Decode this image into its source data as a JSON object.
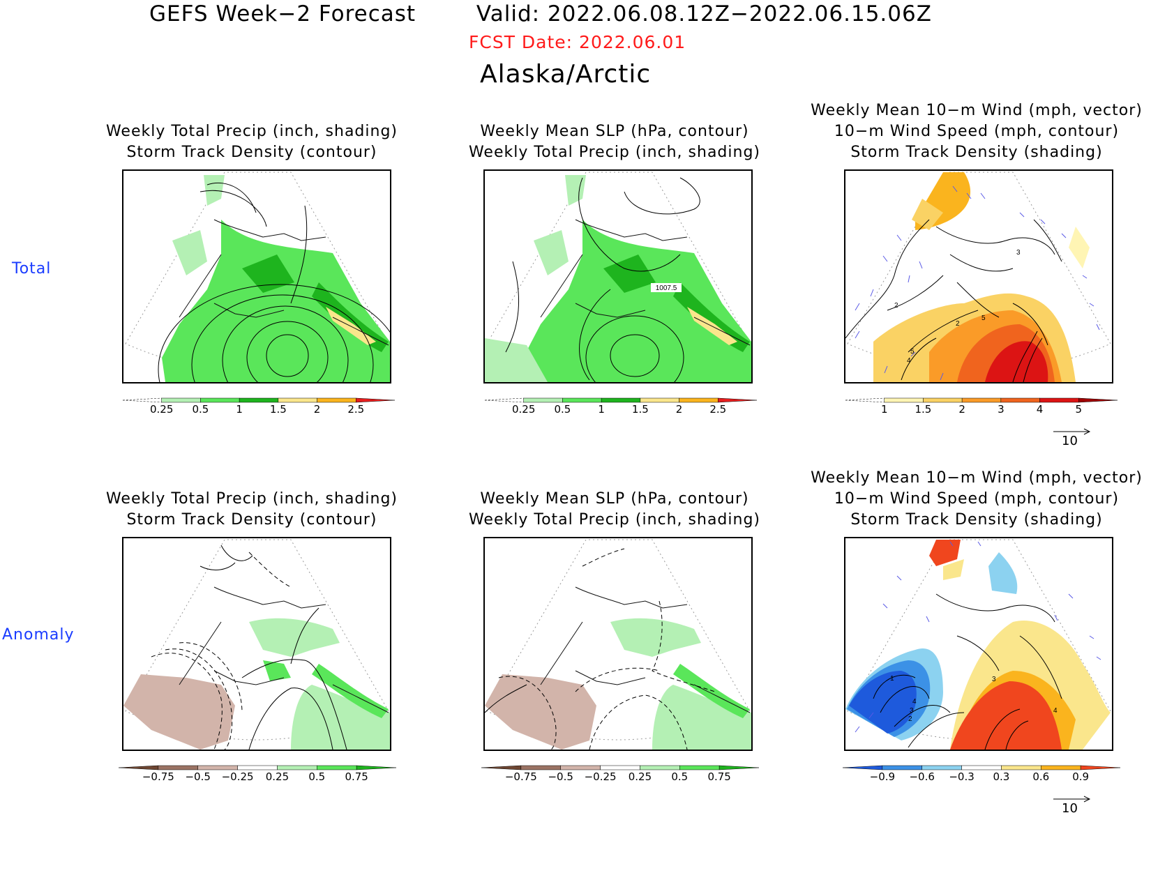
{
  "header": {
    "title": "GEFS Week−2 Forecast        Valid: 2022.06.08.12Z−2022.06.15.06Z",
    "fcst_date": "FCST Date: 2022.06.01",
    "region": "Alaska/Arctic"
  },
  "rows": [
    {
      "label": "Total"
    },
    {
      "label": "Anomaly"
    }
  ],
  "panels": [
    {
      "title1": "Weekly Total Precip (inch, shading)",
      "title2": "Storm Track Density (contour)"
    },
    {
      "title1": "Weekly Mean SLP (hPa, contour)",
      "title2": "Weekly Total Precip (inch, shading)",
      "contour_label": "1007.5"
    },
    {
      "title1": "Weekly Mean 10−m Wind (mph, vector)",
      "title2": "10−m Wind Speed (mph, contour)",
      "title3": "Storm Track Density (shading)"
    },
    {
      "title1": "Weekly Total Precip (inch, shading)",
      "title2": "Storm Track Density (contour)"
    },
    {
      "title1": "Weekly Mean SLP (hPa, contour)",
      "title2": "Weekly Total Precip (inch, shading)"
    },
    {
      "title1": "Weekly Mean 10−m Wind (mph, vector)",
      "title2": "10−m Wind Speed (mph, contour)",
      "title3": "Storm Track Density (shading)"
    }
  ],
  "colorbars": {
    "precip_total": {
      "labels": [
        "0.25",
        "0.5",
        "1",
        "1.5",
        "2",
        "2.5"
      ],
      "colors": [
        "#ffffff",
        "#b4f0b4",
        "#5ae65a",
        "#1eb41e",
        "#fae68c",
        "#fab41e",
        "#e61e1e"
      ]
    },
    "storm_total": {
      "labels": [
        "1",
        "1.5",
        "2",
        "3",
        "4",
        "5"
      ],
      "colors": [
        "#ffffff",
        "#fff5b4",
        "#fad264",
        "#fa9b28",
        "#f0641e",
        "#dc1414",
        "#a00000"
      ]
    },
    "precip_anom": {
      "labels": [
        "−0.75",
        "−0.5",
        "−0.25",
        "0.25",
        "0.5",
        "0.75"
      ],
      "colors": [
        "#6e4632",
        "#9b7364",
        "#d2b4aa",
        "#ffffff",
        "#b4f0b4",
        "#5ae65a",
        "#1eb41e"
      ]
    },
    "storm_anom": {
      "labels": [
        "−0.9",
        "−0.6",
        "−0.3",
        "0.3",
        "0.6",
        "0.9"
      ],
      "colors": [
        "#1e5adc",
        "#3c91e6",
        "#8cd2f0",
        "#ffffff",
        "#fae68c",
        "#fab41e",
        "#f0461e"
      ]
    }
  },
  "vector_reference": "10",
  "contour_labels": {
    "wind_total": [
      "2",
      "3",
      "2",
      "5",
      "4",
      "5"
    ],
    "wind_anom": [
      "1",
      "4",
      "3",
      "2",
      "3",
      "4"
    ]
  }
}
